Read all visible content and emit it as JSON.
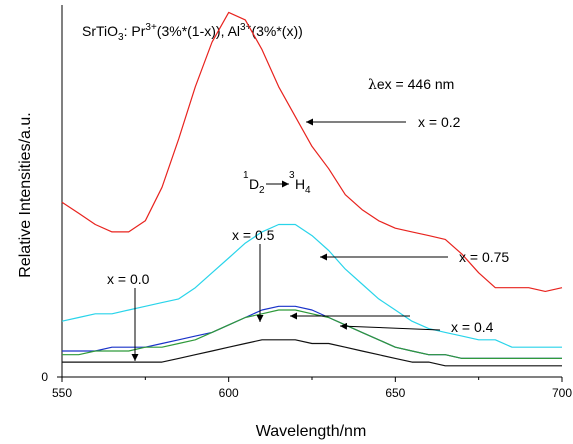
{
  "chart_data": {
    "type": "line",
    "title_parts": [
      {
        "t": "SrTiO",
        "s": "n"
      },
      {
        "t": "3",
        "s": "sub"
      },
      {
        "t": ": Pr",
        "s": "n"
      },
      {
        "t": "3+",
        "s": "sup"
      },
      {
        "t": "(3%*(1-x)), Al",
        "s": "n"
      },
      {
        "t": "3+",
        "s": "sup"
      },
      {
        "t": "(3%*(x))",
        "s": "n"
      }
    ],
    "xlabel": "Wavelength/nm",
    "ylabel": "Relative Intensities/a.u.",
    "xlim": [
      550,
      700
    ],
    "ylim": [
      0,
      100
    ],
    "xticks": [
      "550",
      "600",
      "650",
      "700"
    ],
    "yticks": [
      "0"
    ],
    "series": [
      {
        "color": "#e8231e",
        "x": [
          550,
          555,
          560,
          565,
          570,
          575,
          580,
          585,
          590,
          595,
          600,
          605,
          610,
          615,
          620,
          625,
          630,
          635,
          640,
          645,
          650,
          655,
          660,
          665,
          670,
          675,
          680,
          685,
          690,
          695,
          700
        ],
        "y": [
          47,
          44,
          41,
          39,
          39,
          42,
          51,
          64,
          78,
          90,
          98,
          96,
          88,
          78,
          70,
          62,
          56,
          49,
          45,
          42,
          40,
          39,
          38,
          37,
          33,
          28,
          24,
          24,
          24,
          23,
          24
        ]
      },
      {
        "color": "#29d4ea",
        "x": [
          550,
          555,
          560,
          565,
          570,
          575,
          580,
          585,
          590,
          595,
          600,
          605,
          610,
          615,
          620,
          625,
          630,
          635,
          640,
          645,
          650,
          655,
          660,
          665,
          670,
          675,
          680,
          685,
          690,
          695,
          700
        ],
        "y": [
          15,
          16,
          17,
          17,
          18,
          19,
          20,
          21,
          24,
          28,
          32,
          36,
          39,
          41,
          41,
          38,
          34,
          29,
          25,
          21,
          18,
          15,
          13,
          12,
          11,
          10,
          10,
          8,
          8,
          8,
          8
        ]
      },
      {
        "color": "#1a33c9",
        "x": [
          550,
          555,
          560,
          565,
          570,
          575,
          580,
          585,
          590,
          595,
          600,
          605,
          610,
          615,
          620,
          625,
          630,
          635,
          640,
          645,
          650,
          655,
          660,
          665,
          670,
          675,
          680,
          685,
          690,
          695,
          700
        ],
        "y": [
          7,
          7,
          7,
          8,
          8,
          8,
          9,
          10,
          11,
          12,
          14,
          16,
          18,
          19,
          19,
          18,
          16,
          14,
          12,
          10,
          8,
          7,
          6,
          6,
          5,
          5,
          5,
          5,
          5,
          5,
          5
        ]
      },
      {
        "color": "#2f9a3a",
        "x": [
          550,
          555,
          560,
          565,
          570,
          575,
          580,
          585,
          590,
          595,
          600,
          605,
          610,
          615,
          620,
          625,
          630,
          635,
          640,
          645,
          650,
          655,
          660,
          665,
          670,
          675,
          680,
          685,
          690,
          695,
          700
        ],
        "y": [
          6,
          6,
          7,
          7,
          7,
          8,
          8,
          9,
          10,
          12,
          14,
          16,
          17,
          18,
          18,
          17,
          16,
          14,
          12,
          10,
          8,
          7,
          6,
          6,
          5,
          5,
          5,
          5,
          5,
          5,
          5
        ]
      },
      {
        "color": "#111111",
        "x": [
          550,
          555,
          560,
          565,
          570,
          575,
          580,
          585,
          590,
          595,
          600,
          605,
          610,
          615,
          620,
          625,
          630,
          635,
          640,
          645,
          650,
          655,
          660,
          665,
          670,
          675,
          680,
          685,
          690,
          695,
          700
        ],
        "y": [
          4,
          4,
          4,
          4,
          4,
          4,
          4,
          5,
          6,
          7,
          8,
          9,
          10,
          10,
          10,
          9,
          9,
          8,
          7,
          6,
          5,
          4,
          4,
          3,
          3,
          3,
          3,
          3,
          3,
          3,
          3
        ]
      }
    ],
    "annotations": {
      "lambda_ex": {
        "pre": "λ",
        "rest": "ex = 446 nm"
      },
      "transition": {
        "a": "1",
        "b": "D",
        "c": "2",
        "d": "3",
        "e": "H",
        "f": "4"
      },
      "labels": [
        {
          "text": "x = 0.2",
          "target": [
            623,
            67
          ]
        },
        {
          "text": "x = 0.75",
          "target": [
            626,
            38
          ]
        },
        {
          "text": "x = 0.5",
          "target": [
            610,
            16
          ]
        },
        {
          "text": "x = 0.0",
          "target": [
            572,
            3
          ]
        },
        {
          "text": "x = 0.4",
          "target": [
            621,
            19
          ]
        }
      ]
    }
  }
}
